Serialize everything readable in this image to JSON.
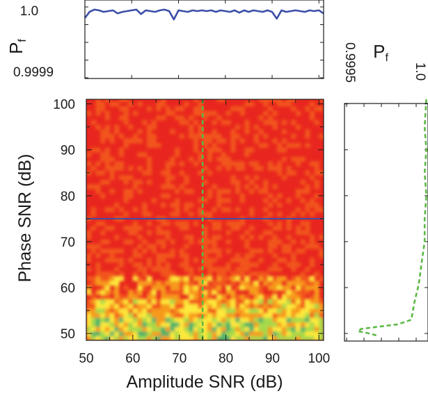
{
  "chart_data": [
    {
      "panel": "top-marginal",
      "type": "line",
      "ylabel": "P",
      "ylabel_subscript": "f",
      "ylim": [
        0.9999,
        1.0
      ],
      "ytick_labels": [
        "0.9999",
        "1.0"
      ],
      "xlim": [
        50,
        101
      ],
      "x": [
        50,
        51,
        52,
        53,
        54,
        55,
        56,
        57,
        58,
        59,
        60,
        61,
        62,
        63,
        64,
        65,
        66,
        67,
        68,
        69,
        70,
        71,
        72,
        73,
        74,
        75,
        76,
        77,
        78,
        79,
        80,
        81,
        82,
        83,
        84,
        85,
        86,
        87,
        88,
        89,
        90,
        91,
        92,
        93,
        94,
        95,
        96,
        97,
        98,
        99,
        100,
        101
      ],
      "values": [
        0.99998,
        0.999988,
        0.999991,
        0.99999,
        0.999988,
        0.999989,
        0.99999,
        0.999986,
        0.999988,
        0.999989,
        0.99999,
        0.999991,
        0.999985,
        0.99999,
        0.999989,
        0.999988,
        0.99999,
        0.999991,
        0.999989,
        0.999978,
        0.99999,
        0.999989,
        0.999988,
        0.99999,
        0.999989,
        0.99999,
        0.999989,
        0.99999,
        0.999988,
        0.99999,
        0.999989,
        0.999988,
        0.99999,
        0.999987,
        0.99999,
        0.999988,
        0.99999,
        0.999989,
        0.999988,
        0.99999,
        0.999988,
        0.999979,
        0.99999,
        0.999988,
        0.999989,
        0.99999,
        0.999989,
        0.999988,
        0.99999,
        0.999989,
        0.99999,
        0.999986
      ],
      "line_color": "#3b4ea8"
    },
    {
      "panel": "heatmap",
      "type": "heatmap",
      "xlabel": "Amplitude SNR (dB)",
      "ylabel": "Phase SNR (dB)",
      "xlim": [
        50,
        101
      ],
      "ylim": [
        48.5,
        101
      ],
      "xtick_labels": [
        "50",
        "60",
        "70",
        "80",
        "90",
        "100"
      ],
      "ytick_labels": [
        "50",
        "60",
        "70",
        "80",
        "90",
        "100"
      ],
      "colormap": [
        "#e8261f",
        "#f2541c",
        "#f79a1c",
        "#fde83a",
        "#a6d94a",
        "#42b26b"
      ],
      "horizontal_line": {
        "y": 75,
        "color": "#3b4ea8"
      },
      "vertical_line": {
        "x": 75,
        "color": "#5cb845",
        "style": "dashed"
      }
    },
    {
      "panel": "right-marginal",
      "type": "line",
      "xlabel": "P",
      "xlabel_subscript": "f",
      "xlim": [
        0.9995,
        1.0
      ],
      "xtick_labels": [
        "0.9995",
        "1.0"
      ],
      "ylim": [
        48.5,
        101
      ],
      "y": [
        101,
        95,
        90,
        85,
        80,
        75,
        70,
        65,
        62,
        60,
        57,
        55,
        53,
        52,
        51,
        50.5,
        50,
        49.5
      ],
      "values": [
        0.99999,
        0.99998,
        0.99999,
        0.99998,
        0.99999,
        0.99998,
        0.99998,
        0.99996,
        0.99995,
        0.99994,
        0.99992,
        0.99991,
        0.9999,
        0.99982,
        0.9996,
        0.99958,
        0.99965,
        0.9997
      ],
      "line_color": "#5cb845",
      "line_style": "dashed"
    }
  ]
}
